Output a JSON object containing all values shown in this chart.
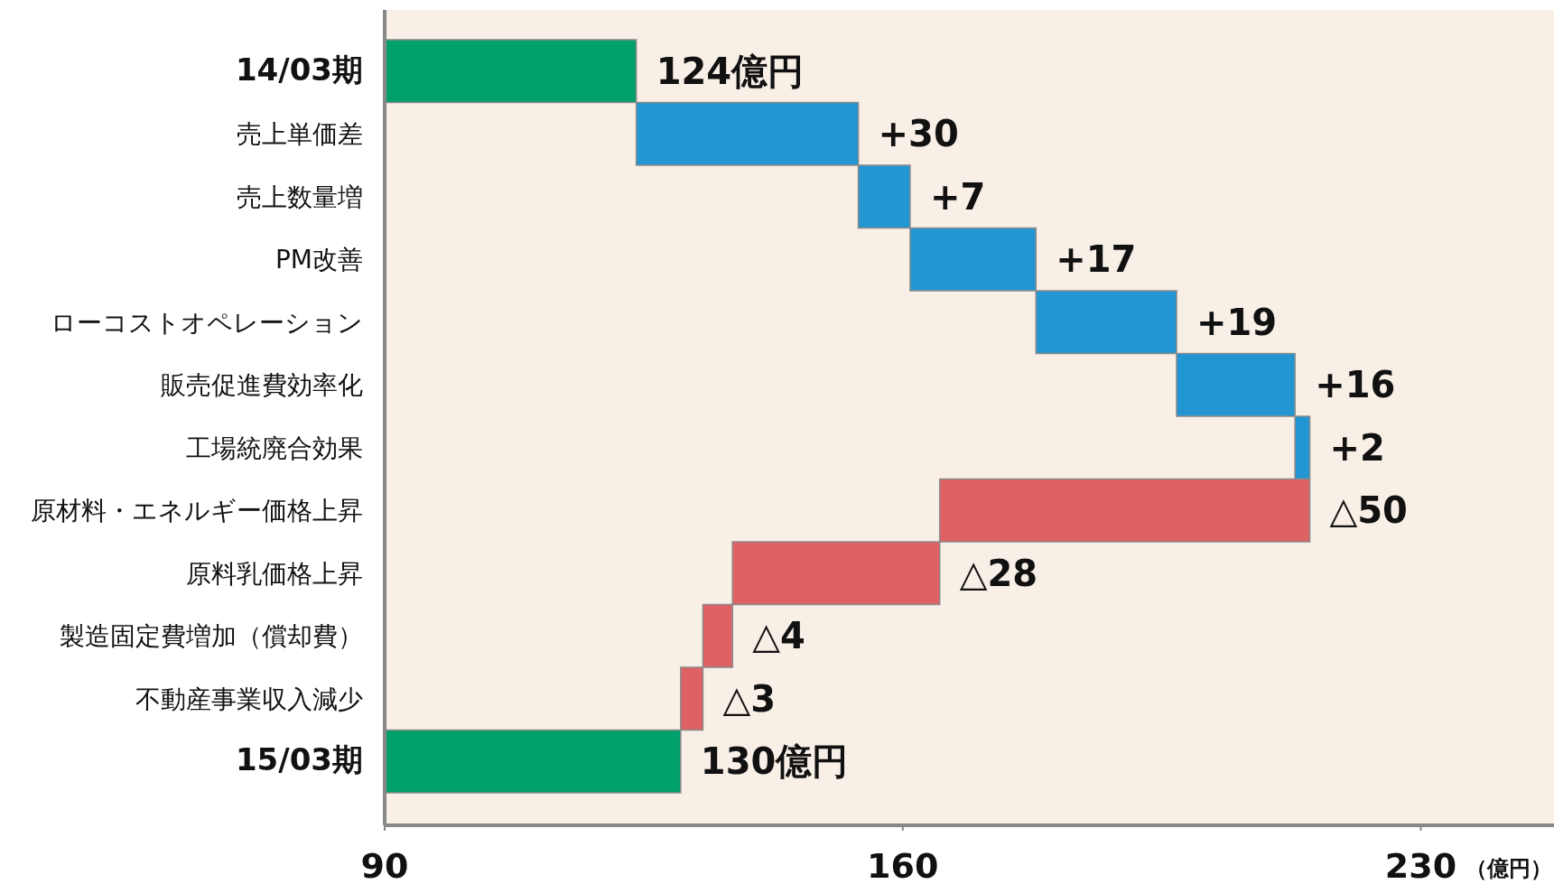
{
  "chart_data": {
    "type": "bar",
    "orientation": "horizontal",
    "categories": [
      "14/03期",
      "売上単価差",
      "売上数量増",
      "PM改善",
      "ローコストオペレーション",
      "販売促進費効率化",
      "工場統廃合効果",
      "原材料・エネルギー価格上昇",
      "原料乳価格上昇",
      "製造固定費増加（償却費）",
      "不動産事業収入減少",
      "15/03期"
    ],
    "values": [
      124,
      30,
      7,
      17,
      19,
      16,
      2,
      -50,
      -28,
      -4,
      -3,
      130
    ],
    "base": [
      null,
      124,
      154,
      161,
      178,
      197,
      213,
      215,
      165,
      137,
      133,
      null
    ],
    "colors": [
      "#00a06a",
      "#2196d3",
      "#2196d3",
      "#2196d3",
      "#2196d3",
      "#2196d3",
      "#2196d3",
      "#e06164",
      "#e06164",
      "#e06164",
      "#e06164",
      "#00a06a"
    ],
    "value_labels": [
      "124億円",
      "+30",
      "+7",
      "+17",
      "+19",
      "+16",
      "+2",
      "△50",
      "△28",
      "△4",
      "△3",
      "130億円"
    ],
    "xlim": [
      90,
      248
    ],
    "xticks": [
      90,
      160,
      230
    ],
    "xlabel": "（億円）"
  }
}
